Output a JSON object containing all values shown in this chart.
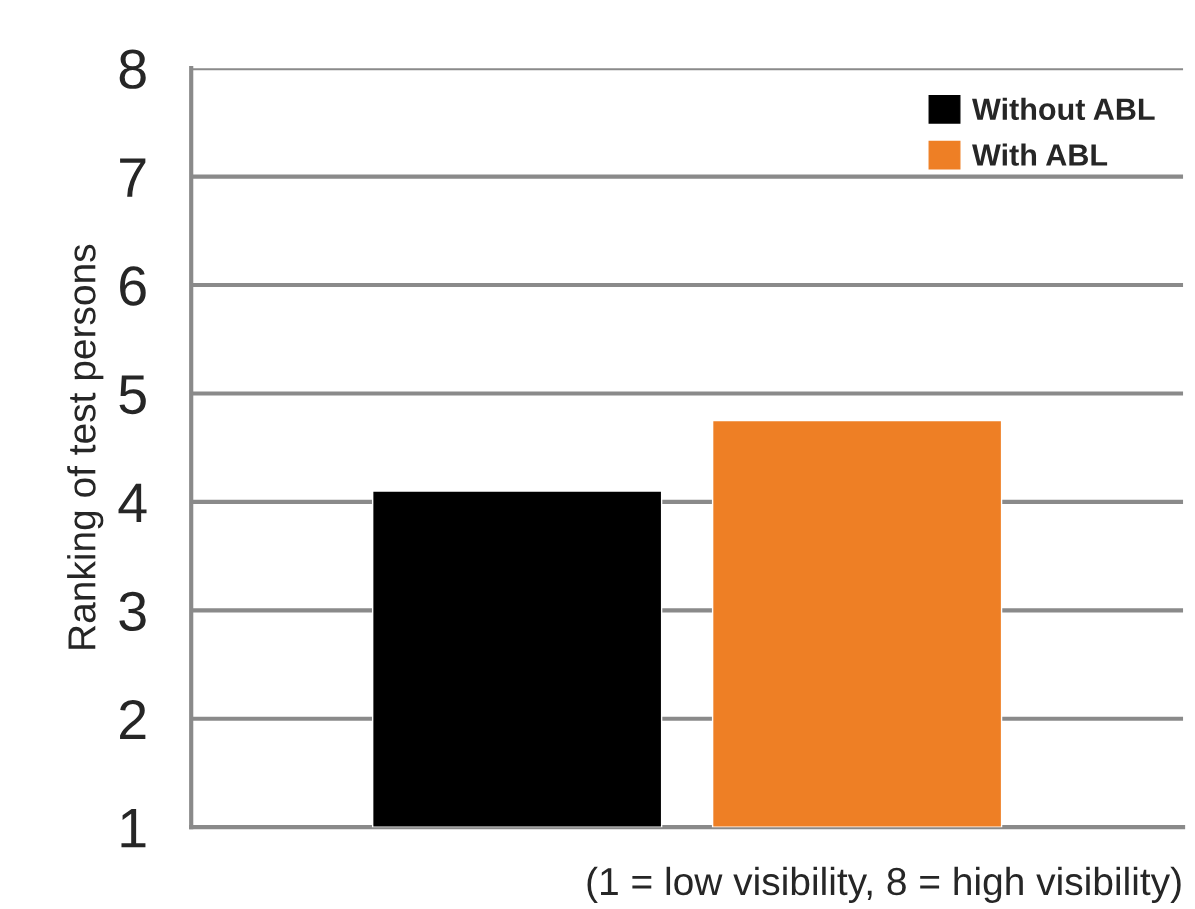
{
  "chart_data": {
    "type": "bar",
    "xlabel": "(1 = low visibility, 8 = high visibility)",
    "ylabel": "Ranking of test persons",
    "categories": [
      null
    ],
    "series": [
      {
        "name": "Without ABL",
        "color": "#000000",
        "values": [
          4.1
        ]
      },
      {
        "name": "With ABL",
        "color": "#ee7f25",
        "values": [
          4.75
        ]
      }
    ],
    "ylim": [
      1,
      8
    ],
    "yticks": [
      1,
      2,
      3,
      4,
      5,
      6,
      7,
      8
    ],
    "grid": "y",
    "legend": "top right"
  }
}
